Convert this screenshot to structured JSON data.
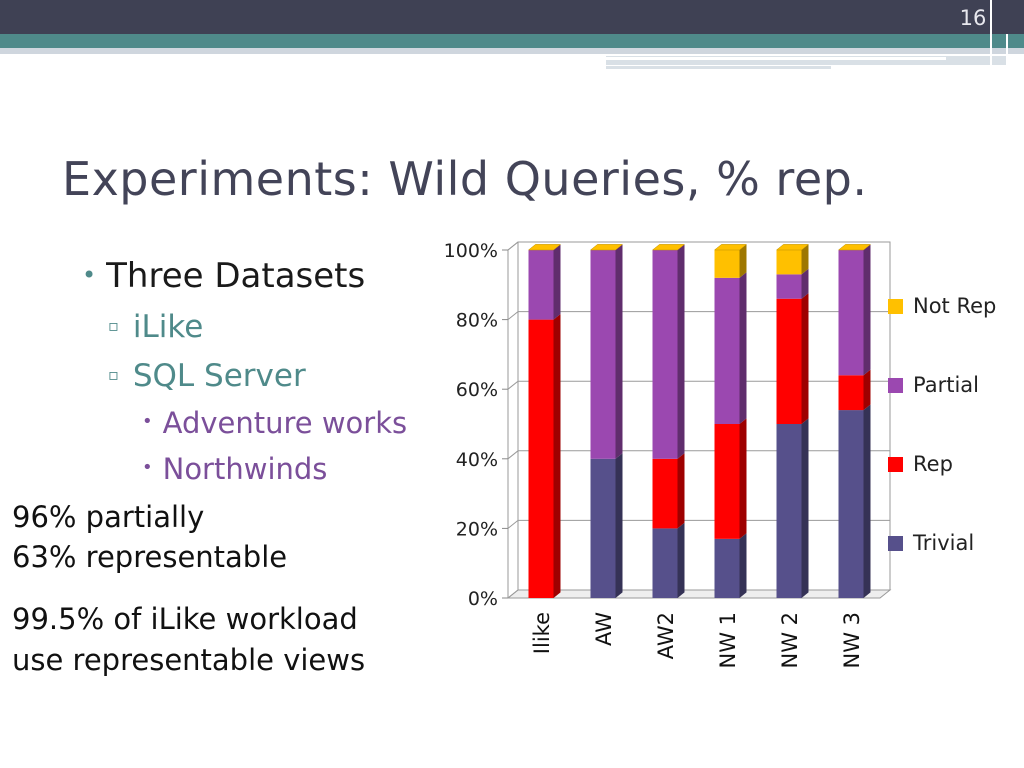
{
  "slide": {
    "number": "16",
    "title": "Experiments: Wild Queries, % rep.",
    "bullets": {
      "level1": "Three Datasets",
      "level2": [
        "iLike",
        "SQL Server"
      ],
      "level3": [
        "Adventure works",
        "Northwinds"
      ]
    },
    "notes": [
      "96% partially",
      "63% representable",
      "99.5% of iLike workload",
      "use representable views"
    ]
  },
  "chart_data": {
    "type": "bar",
    "stacked": true,
    "percent": true,
    "categories": [
      "Ilike",
      "AW",
      "AW2",
      "NW 1",
      "NW 2",
      "NW 3"
    ],
    "series": [
      {
        "name": "Trivial",
        "color": "#56508b",
        "values": [
          0,
          40,
          20,
          17,
          50,
          54
        ]
      },
      {
        "name": "Rep",
        "color": "#ff0000",
        "values": [
          80,
          0,
          20,
          33,
          36,
          10
        ]
      },
      {
        "name": "Partial",
        "color": "#9b48b0",
        "values": [
          20,
          60,
          60,
          42,
          7,
          36
        ]
      },
      {
        "name": "Not Rep",
        "color": "#ffc000",
        "values": [
          0,
          0,
          0,
          8,
          7,
          0
        ]
      }
    ],
    "yticks": [
      "0%",
      "20%",
      "40%",
      "60%",
      "80%",
      "100%"
    ],
    "ylim": [
      0,
      100
    ],
    "legend": "right"
  }
}
